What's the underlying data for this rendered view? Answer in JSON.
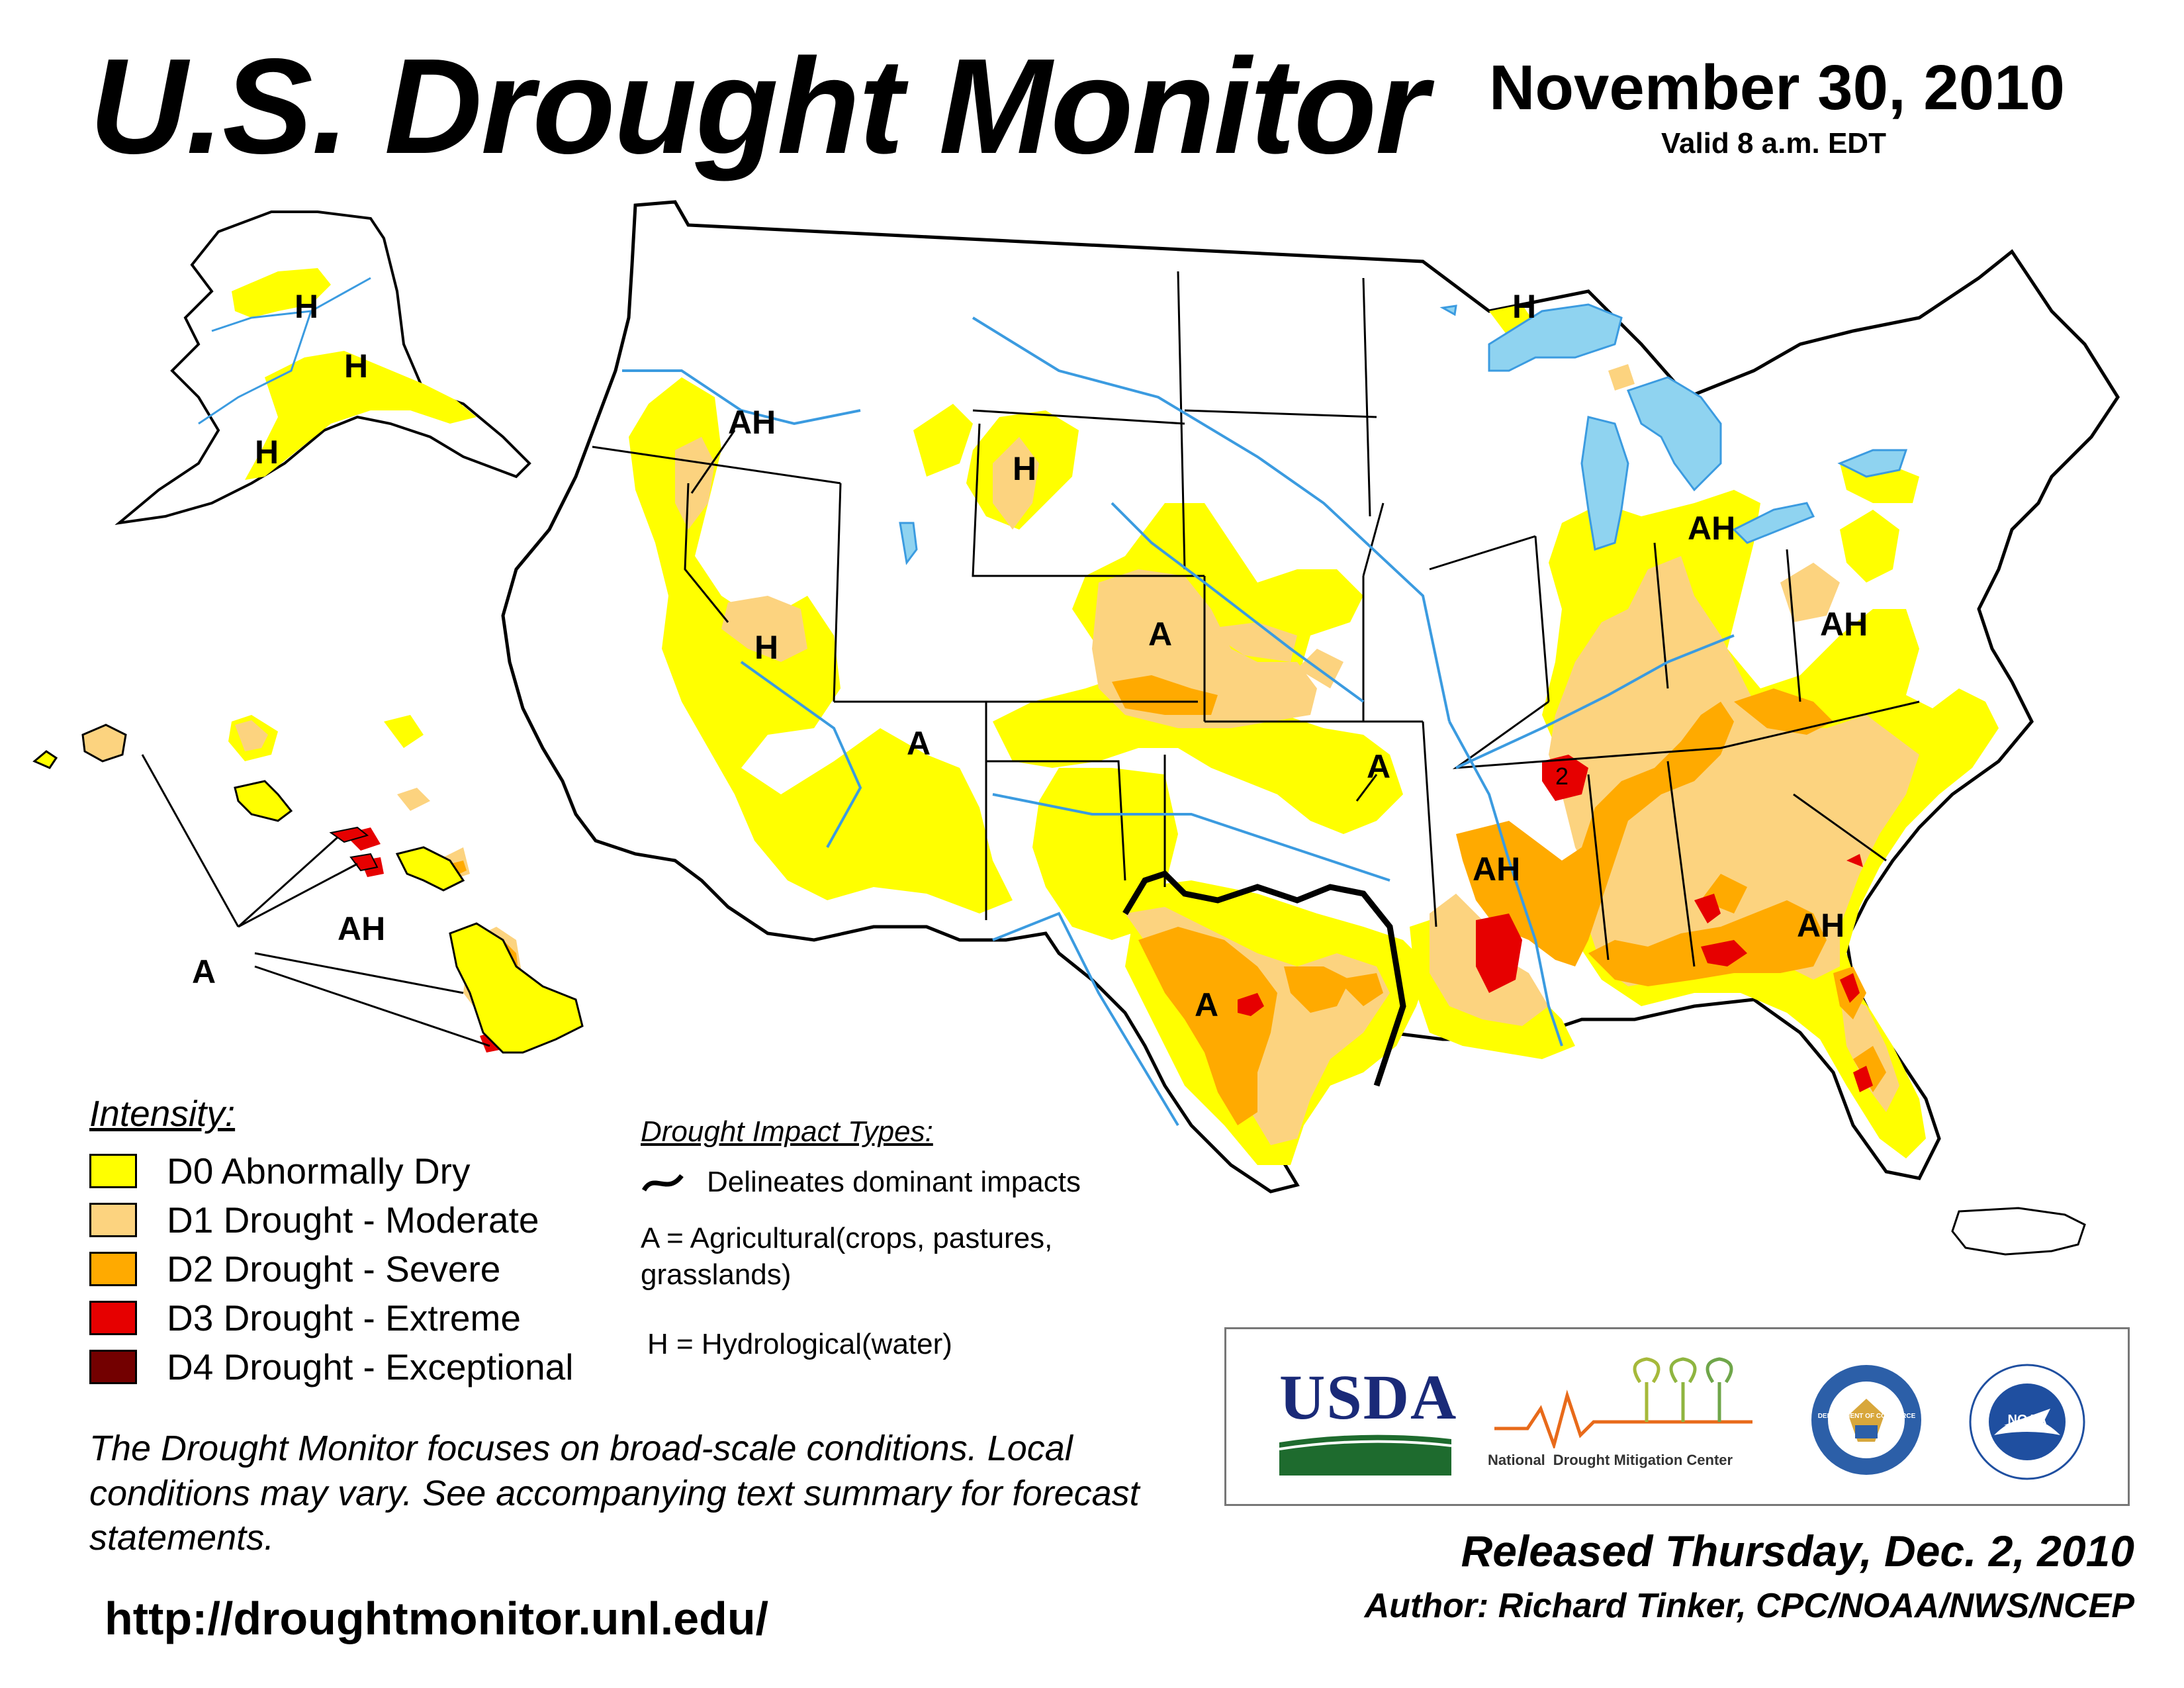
{
  "header": {
    "title": "U.S. Drought Monitor",
    "date": "November 30, 2010",
    "valid": "Valid 8 a.m. EDT"
  },
  "map": {
    "region_labels": [
      {
        "text": "H",
        "region": "alaska-interior"
      },
      {
        "text": "H",
        "region": "alaska-south"
      },
      {
        "text": "H",
        "region": "alaska-peninsula"
      },
      {
        "text": "AH",
        "region": "hawaii"
      },
      {
        "text": "A",
        "region": "hawaii-callout"
      },
      {
        "text": "AH",
        "region": "oregon"
      },
      {
        "text": "H",
        "region": "nevada"
      },
      {
        "text": "H",
        "region": "wyoming"
      },
      {
        "text": "A",
        "region": "arizona"
      },
      {
        "text": "A",
        "region": "colorado"
      },
      {
        "text": "A",
        "region": "oklahoma"
      },
      {
        "text": "A",
        "region": "texas"
      },
      {
        "text": "H",
        "region": "upper-michigan"
      },
      {
        "text": "AH",
        "region": "ohio-valley"
      },
      {
        "text": "AH",
        "region": "west-virginia"
      },
      {
        "text": "AH",
        "region": "lower-mississippi"
      },
      {
        "text": "AH",
        "region": "southeast"
      },
      {
        "text": "2",
        "region": "tennessee"
      }
    ]
  },
  "legend": {
    "title": "Intensity:",
    "items": [
      {
        "label": "D0 Abnormally Dry",
        "color": "#FFFF00"
      },
      {
        "label": "D1 Drought - Moderate",
        "color": "#FCD37F"
      },
      {
        "label": "D2 Drought - Severe",
        "color": "#FFAA00"
      },
      {
        "label": "D3 Drought - Extreme",
        "color": "#E60000"
      },
      {
        "label": "D4 Drought - Exceptional",
        "color": "#730000"
      }
    ]
  },
  "impacts": {
    "title": "Drought Impact Types:",
    "delineates": "Delineates dominant impacts",
    "agricultural": "A = Agricultural(crops, pastures, grasslands)",
    "hydrological": "H = Hydrological(water)"
  },
  "disclaimer": "The Drought Monitor focuses on broad-scale conditions. Local conditions may vary. See accompanying text summary for forecast statements.",
  "url": "http://droughtmonitor.unl.edu/",
  "logos": {
    "usda": "USDA",
    "ndmc_left": "National",
    "ndmc_right": "Drought Mitigation Center",
    "commerce": "DEPARTMENT OF COMMERCE",
    "noaa": "NOAA"
  },
  "released": "Released Thursday, Dec. 2, 2010",
  "author": "Author: Richard Tinker, CPC/NOAA/NWS/NCEP",
  "colors": {
    "lakes": "#8FD3F0",
    "rivers": "#3B9BE0",
    "borders": "#000000",
    "counties": "#A0A0A0"
  }
}
